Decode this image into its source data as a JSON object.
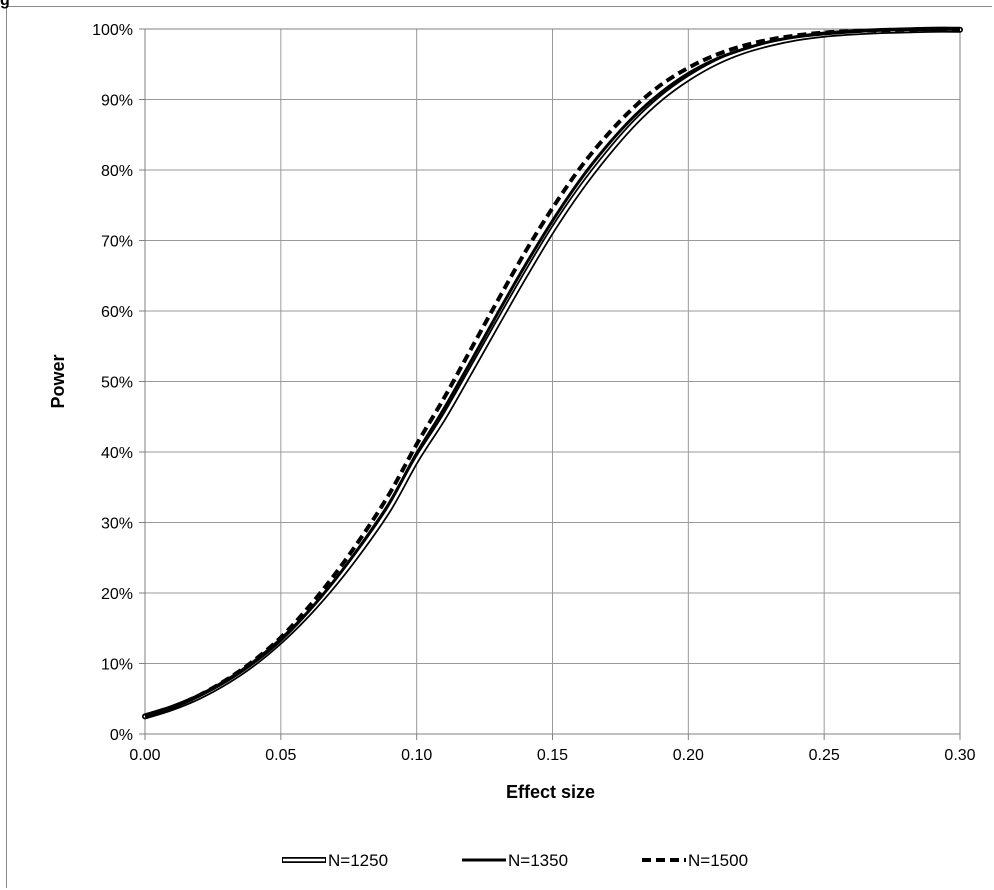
{
  "chart_data": {
    "type": "line",
    "title": "",
    "xlabel": "Effect size",
    "ylabel": "Power",
    "xlim": [
      0,
      0.3
    ],
    "ylim": [
      0,
      1
    ],
    "x_ticks": [
      "0.00",
      "0.05",
      "0.10",
      "0.15",
      "0.20",
      "0.25",
      "0.30"
    ],
    "y_ticks": [
      "0%",
      "10%",
      "20%",
      "30%",
      "40%",
      "50%",
      "60%",
      "70%",
      "80%",
      "90%",
      "100%"
    ],
    "grid": true,
    "legend_position": "bottom",
    "x": [
      0.0,
      0.01,
      0.02,
      0.03,
      0.04,
      0.05,
      0.06,
      0.07,
      0.08,
      0.09,
      0.1,
      0.11,
      0.12,
      0.13,
      0.14,
      0.15,
      0.16,
      0.17,
      0.18,
      0.19,
      0.2,
      0.21,
      0.22,
      0.23,
      0.24,
      0.25,
      0.26,
      0.27,
      0.28,
      0.29,
      0.3
    ],
    "series": [
      {
        "name": "N=1250",
        "style": "double",
        "color": "#000000",
        "values": [
          0.025,
          0.037,
          0.053,
          0.074,
          0.1,
          0.132,
          0.17,
          0.214,
          0.264,
          0.32,
          0.389,
          0.449,
          0.516,
          0.584,
          0.651,
          0.715,
          0.772,
          0.822,
          0.866,
          0.902,
          0.93,
          0.952,
          0.968,
          0.979,
          0.987,
          0.992,
          0.995,
          0.997,
          0.998,
          0.999,
          0.999
        ]
      },
      {
        "name": "N=1350",
        "style": "solid",
        "color": "#000000",
        "values": [
          0.025,
          0.037,
          0.054,
          0.075,
          0.101,
          0.133,
          0.173,
          0.219,
          0.271,
          0.328,
          0.398,
          0.461,
          0.529,
          0.598,
          0.665,
          0.728,
          0.785,
          0.834,
          0.876,
          0.91,
          0.937,
          0.957,
          0.971,
          0.982,
          0.989,
          0.993,
          0.996,
          0.998,
          0.999,
          0.999,
          1.0
        ]
      },
      {
        "name": "N=1500",
        "style": "dashed",
        "color": "#000000",
        "values": [
          0.025,
          0.038,
          0.055,
          0.077,
          0.104,
          0.137,
          0.179,
          0.227,
          0.281,
          0.341,
          0.411,
          0.476,
          0.546,
          0.616,
          0.684,
          0.746,
          0.802,
          0.849,
          0.889,
          0.921,
          0.945,
          0.963,
          0.976,
          0.985,
          0.991,
          0.995,
          0.997,
          0.998,
          0.999,
          1.0,
          1.0
        ]
      }
    ]
  },
  "figure": {
    "corner_label": "g"
  }
}
